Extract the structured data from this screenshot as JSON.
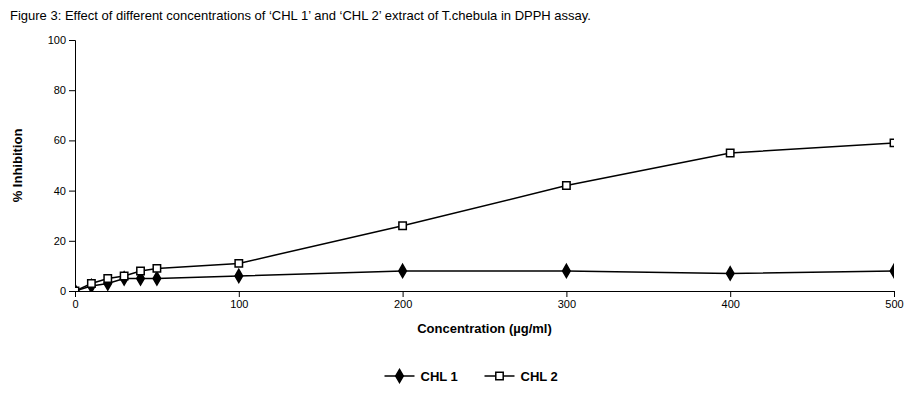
{
  "chart_data": {
    "type": "line",
    "title": "Figure 3: Effect of different concentrations of ‘CHL 1’ and ‘CHL 2’ extract of T.chebula in DPPH assay.",
    "x_label": "Concentration (µg/ml)",
    "y_label": "% Inhibition",
    "x": [
      0,
      10,
      20,
      30,
      40,
      50,
      100,
      200,
      300,
      400,
      500
    ],
    "series": [
      {
        "name": "CHL 1",
        "color": "#000000",
        "marker": "diamond",
        "values": [
          0,
          2,
          3,
          5,
          5,
          5,
          6,
          8,
          8,
          7,
          8
        ]
      },
      {
        "name": "CHL 2",
        "color": "#000000",
        "marker": "open-square",
        "values": [
          0,
          3,
          5,
          6,
          8,
          9,
          11,
          26,
          42,
          55,
          59
        ]
      }
    ],
    "xlim": [
      0,
      500
    ],
    "ylim": [
      0,
      100
    ],
    "xticks": [
      0,
      100,
      200,
      300,
      400,
      500
    ],
    "yticks": [
      0,
      20,
      40,
      60,
      80,
      100
    ],
    "grid": false,
    "legend": "bottom"
  }
}
